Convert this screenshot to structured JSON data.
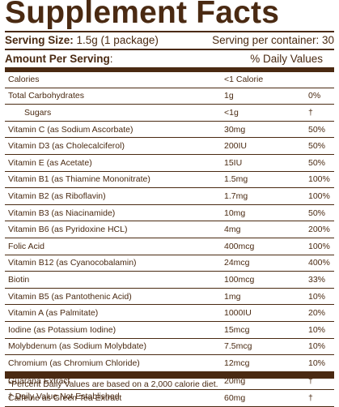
{
  "title": "Supplement Facts",
  "serving_size": {
    "label": "Serving Size:",
    "value": " 1.5g (1 package)"
  },
  "servings_per_container": "Serving per container: 30",
  "amount_per_serving": {
    "label": "Amount Per Serving",
    "colon": ":"
  },
  "daily_values_header": "% Daily Values",
  "rows": [
    {
      "name": "Calories",
      "amount": "<1 Calorie",
      "dv": ""
    },
    {
      "name": "Total Carbohydrates",
      "amount": "1g",
      "dv": "0%"
    },
    {
      "name": "Sugars",
      "amount": "<1g",
      "dv": "†"
    },
    {
      "name": "Vitamin C (as Sodium Ascorbate)",
      "amount": "30mg",
      "dv": "50%"
    },
    {
      "name": "Vitamin D3 (as Cholecalciferol)",
      "amount": "200IU",
      "dv": "50%"
    },
    {
      "name": "Vitamin E (as Acetate)",
      "amount": "15IU",
      "dv": "50%"
    },
    {
      "name": "Vitamin B1 (as Thiamine Mononitrate)",
      "amount": "1.5mg",
      "dv": "100%"
    },
    {
      "name": "Vitamin B2 (as Riboflavin)",
      "amount": "1.7mg",
      "dv": "100%"
    },
    {
      "name": "Vitamin B3 (as Niacinamide)",
      "amount": "10mg",
      "dv": "50%"
    },
    {
      "name": "Vitamin B6 (as Pyridoxine HCL)",
      "amount": "4mg",
      "dv": "200%"
    },
    {
      "name": "Folic Acid",
      "amount": "400mcg",
      "dv": "100%"
    },
    {
      "name": "Vitamin B12 (as Cyanocobalamin)",
      "amount": "24mcg",
      "dv": "400%"
    },
    {
      "name": "Biotin",
      "amount": "100mcg",
      "dv": "33%"
    },
    {
      "name": "Vitamin B5 (as Pantothenic Acid)",
      "amount": "1mg",
      "dv": "10%"
    },
    {
      "name": "Vitamin A (as Palmitate)",
      "amount": "1000IU",
      "dv": "20%"
    },
    {
      "name": "Iodine (as Potassium Iodine)",
      "amount": "15mcg",
      "dv": "10%"
    },
    {
      "name": "Molybdenum (as Sodium Molybdate)",
      "amount": "7.5mcg",
      "dv": "10%"
    },
    {
      "name": "Chromium (as Chromium Chloride)",
      "amount": "12mcg",
      "dv": "10%"
    },
    {
      "name": "Guarana Extract",
      "amount": "20mg",
      "dv": "†"
    },
    {
      "name": "Caffeine as Green Tea Extract",
      "amount": "60mg",
      "dv": "†"
    }
  ],
  "footnotes": [
    "*Percent Daily Values are based on a 2,000 calorie diet.",
    "† Daily Value Not Established"
  ],
  "colors": {
    "ink": "#4a2a12",
    "background": "#ffffff"
  }
}
